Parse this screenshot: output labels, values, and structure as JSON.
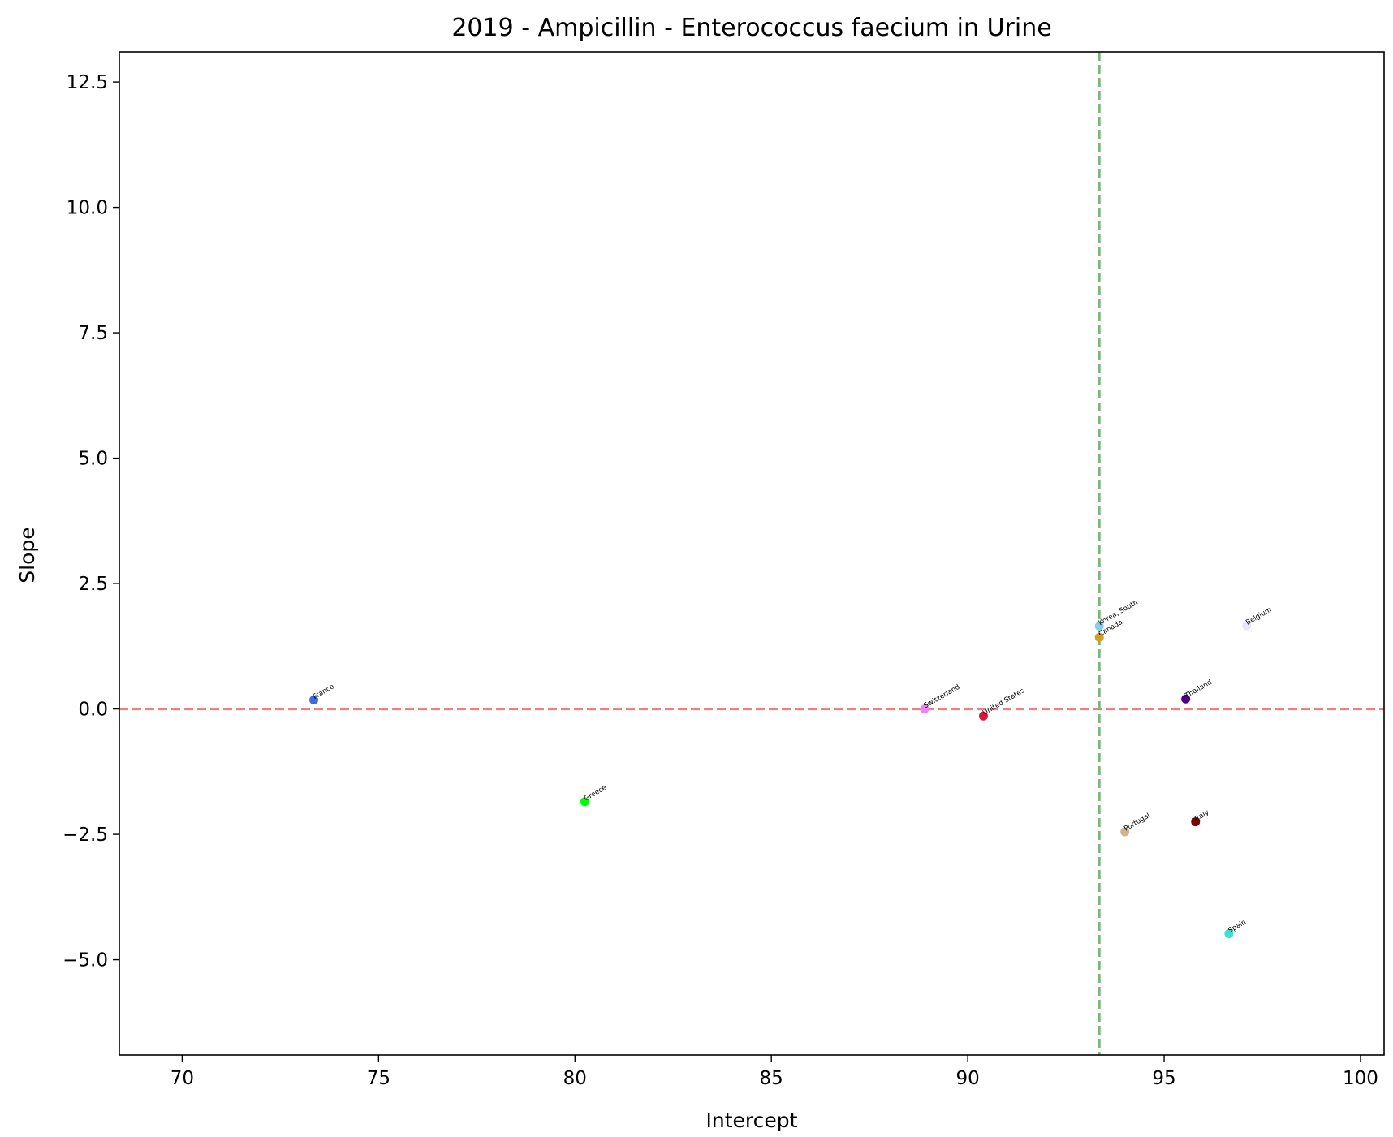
{
  "chart_data": {
    "type": "scatter",
    "title": "2019 - Ampicillin - Enterococcus faecium in Urine",
    "xlabel": "Intercept",
    "ylabel": "Slope",
    "xlim": [
      68.4,
      100.6
    ],
    "ylim": [
      -6.9,
      13.1
    ],
    "x_ticks": [
      70,
      75,
      80,
      85,
      90,
      95,
      100
    ],
    "x_tick_labels": [
      "70",
      "75",
      "80",
      "85",
      "90",
      "95",
      "100"
    ],
    "y_ticks": [
      -5.0,
      -2.5,
      0.0,
      2.5,
      5.0,
      7.5,
      10.0,
      12.5
    ],
    "y_tick_labels": [
      "−5.0",
      "−2.5",
      "0.0",
      "2.5",
      "5.0",
      "7.5",
      "10.0",
      "12.5"
    ],
    "grid": false,
    "reference_lines": [
      {
        "orientation": "horizontal",
        "value": 0.0,
        "color": "#f08080",
        "style": "dashed"
      },
      {
        "orientation": "vertical",
        "value": 93.35,
        "color": "#7ab87a",
        "style": "dashed"
      }
    ],
    "points": [
      {
        "label": "France",
        "x": 73.35,
        "y": 0.18,
        "color": "#4169e1"
      },
      {
        "label": "Greece",
        "x": 80.25,
        "y": -1.85,
        "color": "#00ff00"
      },
      {
        "label": "Switzerland",
        "x": 88.9,
        "y": 0.0,
        "color": "#ee82ee"
      },
      {
        "label": "United States",
        "x": 90.4,
        "y": -0.14,
        "color": "#dc143c"
      },
      {
        "label": "Korea, South",
        "x": 93.35,
        "y": 1.65,
        "color": "#87ceeb"
      },
      {
        "label": "Canada",
        "x": 93.35,
        "y": 1.43,
        "color": "#d4a017"
      },
      {
        "label": "Belgium",
        "x": 97.1,
        "y": 1.66,
        "color": "#e6e6fa"
      },
      {
        "label": "Thailand",
        "x": 95.55,
        "y": 0.2,
        "color": "#4b0082"
      },
      {
        "label": "Portugal",
        "x": 94.0,
        "y": -2.45,
        "color": "#d2b48c"
      },
      {
        "label": "Italy",
        "x": 95.8,
        "y": -2.25,
        "color": "#800000"
      },
      {
        "label": "Spain",
        "x": 96.65,
        "y": -4.48,
        "color": "#40e0d0"
      }
    ]
  }
}
